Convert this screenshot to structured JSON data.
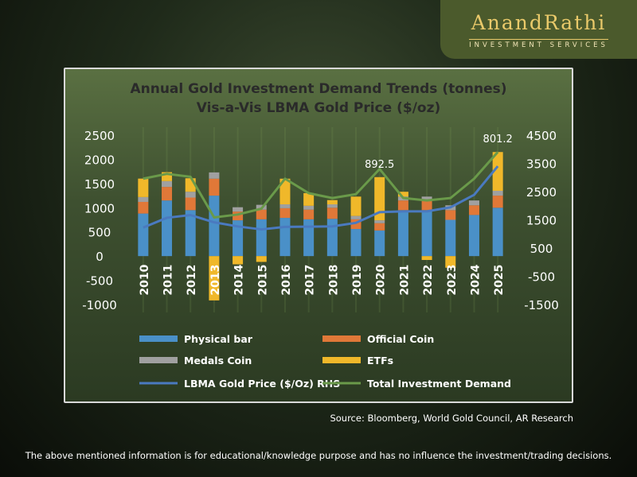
{
  "logo": {
    "name": "AnandRathi",
    "subtitle": "INVESTMENT SERVICES"
  },
  "source": "Source: Bloomberg, World Gold Council, AR Research",
  "disclaimer": "The above mentioned information is for educational/knowledge purpose and has no influence the investment/trading decisions.",
  "colors": {
    "physical_bar": "#4a90c8",
    "official_coin": "#e07838",
    "medals_coin": "#a0a0a0",
    "etfs": "#f0b82a",
    "lbma_line": "#4a7ac0",
    "total_line": "#6a9a4a"
  },
  "chart_data": {
    "type": "bar",
    "title": "Annual Gold Investment Demand Trends (tonnes)",
    "subtitle": "Vis-a-Vis LBMA Gold Price ($/oz)",
    "categories": [
      "2010",
      "2011",
      "2012",
      "2013",
      "2014",
      "2015",
      "2016",
      "2017",
      "2018",
      "2019",
      "2020",
      "2021",
      "2022",
      "2023",
      "2024",
      "2025"
    ],
    "stacked": true,
    "series": [
      {
        "name": "Physical bar",
        "values": [
          880,
          1150,
          950,
          1250,
          740,
          760,
          790,
          760,
          770,
          560,
          530,
          950,
          950,
          750,
          850,
          1000
        ]
      },
      {
        "name": "Official Coin",
        "values": [
          240,
          280,
          260,
          350,
          180,
          200,
          200,
          200,
          230,
          200,
          150,
          200,
          200,
          200,
          200,
          250
        ]
      },
      {
        "name": "Medals Coin",
        "values": [
          100,
          120,
          120,
          130,
          90,
          100,
          80,
          80,
          70,
          70,
          60,
          80,
          80,
          100,
          100,
          100
        ]
      },
      {
        "name": "ETFs",
        "values": [
          382,
          185,
          279,
          -916,
          -170,
          -120,
          530,
          262,
          88,
          400,
          892.5,
          100,
          -80,
          -240,
          0,
          801.2
        ]
      }
    ],
    "line_series": [
      {
        "name": "LBMA Gold Price ($/Oz) RHS",
        "axis": "right",
        "values": [
          1225,
          1572,
          1669,
          1411,
          1266,
          1160,
          1251,
          1257,
          1268,
          1393,
          1770,
          1800,
          1800,
          1943,
          2386,
          3400
        ]
      },
      {
        "name": "Total Investment Demand",
        "axis": "left",
        "values": [
          1600,
          1700,
          1640,
          800,
          860,
          980,
          1600,
          1300,
          1200,
          1280,
          1800,
          1200,
          1150,
          1200,
          1600,
          2150
        ]
      }
    ],
    "data_labels": [
      {
        "category": "2020",
        "text": "892.5"
      },
      {
        "category": "2025",
        "text": "801.2"
      }
    ],
    "ylim": [
      -1000,
      2500
    ],
    "yticks": [
      "2500",
      "2000",
      "1500",
      "1000",
      "500",
      "0",
      "-500",
      "-1000"
    ],
    "ylim_right": [
      -1500,
      4500
    ],
    "yticks_right": [
      "4500",
      "3500",
      "2500",
      "1500",
      "500",
      "-500",
      "-1500"
    ],
    "legend": [
      "Physical bar",
      "Official Coin",
      "Medals Coin",
      "ETFs",
      "LBMA Gold Price ($/Oz) RHS",
      "Total Investment Demand"
    ],
    "legend_position": "bottom"
  }
}
